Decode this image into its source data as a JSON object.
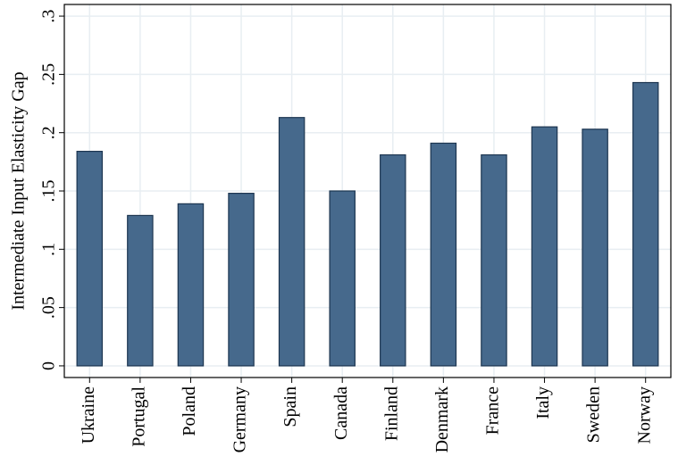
{
  "chart_data": {
    "type": "bar",
    "y_label": "Intermediate Input Elasticity Gap",
    "categories": [
      "Ukraine",
      "Portugal",
      "Poland",
      "Germany",
      "Spain",
      "Canada",
      "Finland",
      "Denmark",
      "France",
      "Italy",
      "Sweden",
      "Norway"
    ],
    "values": [
      0.184,
      0.129,
      0.139,
      0.148,
      0.213,
      0.15,
      0.181,
      0.191,
      0.181,
      0.205,
      0.203,
      0.243
    ],
    "color": "#46698c",
    "ylim": [
      -0.01,
      0.31
    ],
    "yticks": [
      0,
      {
        "value": 0.05,
        "label": ".05"
      },
      {
        "value": 0.1,
        "label": ".1"
      },
      {
        "value": 0.15,
        "label": ".15"
      },
      {
        "value": 0.2,
        "label": ".2"
      },
      {
        "value": 0.25,
        "label": ".25"
      },
      {
        "value": 0.3,
        "label": ".3"
      }
    ],
    "grid": true
  }
}
